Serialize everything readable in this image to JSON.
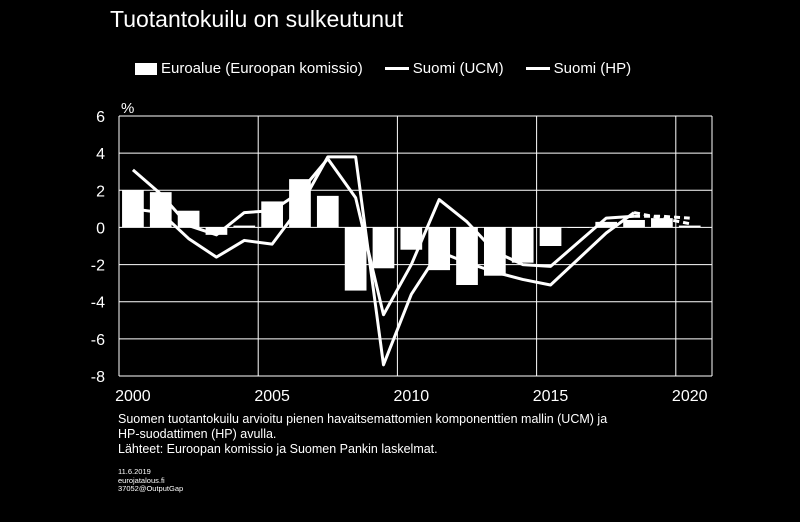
{
  "title": "Tuotantokuilu on sulkeutunut",
  "legend": {
    "bar": "Euroalue (Euroopan komissio)",
    "ucm": "Suomi (UCM)",
    "hp": "Suomi (HP)"
  },
  "note": {
    "line1": "Suomen tuotantokuilu arvioitu pienen havaitsemattomien komponenttien mallin (UCM) ja",
    "line2": "HP-suodattimen (HP) avulla.",
    "line3": "Lähteet: Euroopan komissio ja Suomen Pankin laskelmat."
  },
  "meta": {
    "date": "11.6.2019",
    "site": "eurojatalous.fi",
    "code": "37052@OutputGap"
  },
  "chart_data": {
    "type": "bar",
    "ylabel": "%",
    "ylim": [
      -8,
      6
    ],
    "yticks": [
      6,
      4,
      2,
      0,
      -2,
      -4,
      -6,
      -8
    ],
    "xlim": [
      1999.5,
      2020.8
    ],
    "xticks": [
      2000,
      2005,
      2010,
      2015,
      2020
    ],
    "grid": true,
    "legend_position": "top",
    "colors": {
      "background": "#000000",
      "series": "#ffffff",
      "grid": "#ffffff"
    },
    "bars": {
      "name": "Euroalue (Euroopan komissio)",
      "x": [
        2000,
        2001,
        2002,
        2003,
        2004,
        2005,
        2006,
        2007,
        2008,
        2009,
        2010,
        2011,
        2012,
        2013,
        2014,
        2015,
        2016,
        2017,
        2018,
        2019,
        2020
      ],
      "values": [
        2.0,
        1.9,
        0.9,
        -0.4,
        0.1,
        1.4,
        2.6,
        1.7,
        -3.4,
        -2.2,
        -1.2,
        -2.3,
        -3.1,
        -2.6,
        -1.9,
        -1.0,
        0.0,
        0.3,
        0.4,
        0.5,
        0.1
      ]
    },
    "series": [
      {
        "name": "Suomi (UCM)",
        "x": [
          2000,
          2001,
          2002,
          2003,
          2004,
          2005,
          2006,
          2007,
          2008,
          2009,
          2010,
          2011,
          2012,
          2013,
          2014,
          2015,
          2016,
          2017,
          2018,
          2019,
          2020
        ],
        "values": [
          3.1,
          1.8,
          0.1,
          -0.4,
          0.8,
          0.9,
          1.9,
          3.7,
          1.6,
          -4.7,
          -2.0,
          1.5,
          0.3,
          -1.3,
          -2.0,
          -2.1,
          -0.8,
          0.5,
          0.6,
          0.6,
          0.5
        ],
        "projected_from": 2018
      },
      {
        "name": "Suomi (HP)",
        "x": [
          2000,
          2001,
          2002,
          2003,
          2004,
          2005,
          2006,
          2007,
          2008,
          2009,
          2010,
          2011,
          2012,
          2013,
          2014,
          2015,
          2016,
          2017,
          2018,
          2019,
          2020
        ],
        "values": [
          1.0,
          0.8,
          -0.6,
          -1.6,
          -0.7,
          -0.9,
          1.1,
          3.8,
          3.8,
          -7.4,
          -3.6,
          -1.3,
          -1.9,
          -2.4,
          -2.8,
          -3.1,
          -1.7,
          -0.3,
          0.8,
          0.5,
          0.2
        ],
        "projected_from": 2018
      }
    ]
  }
}
